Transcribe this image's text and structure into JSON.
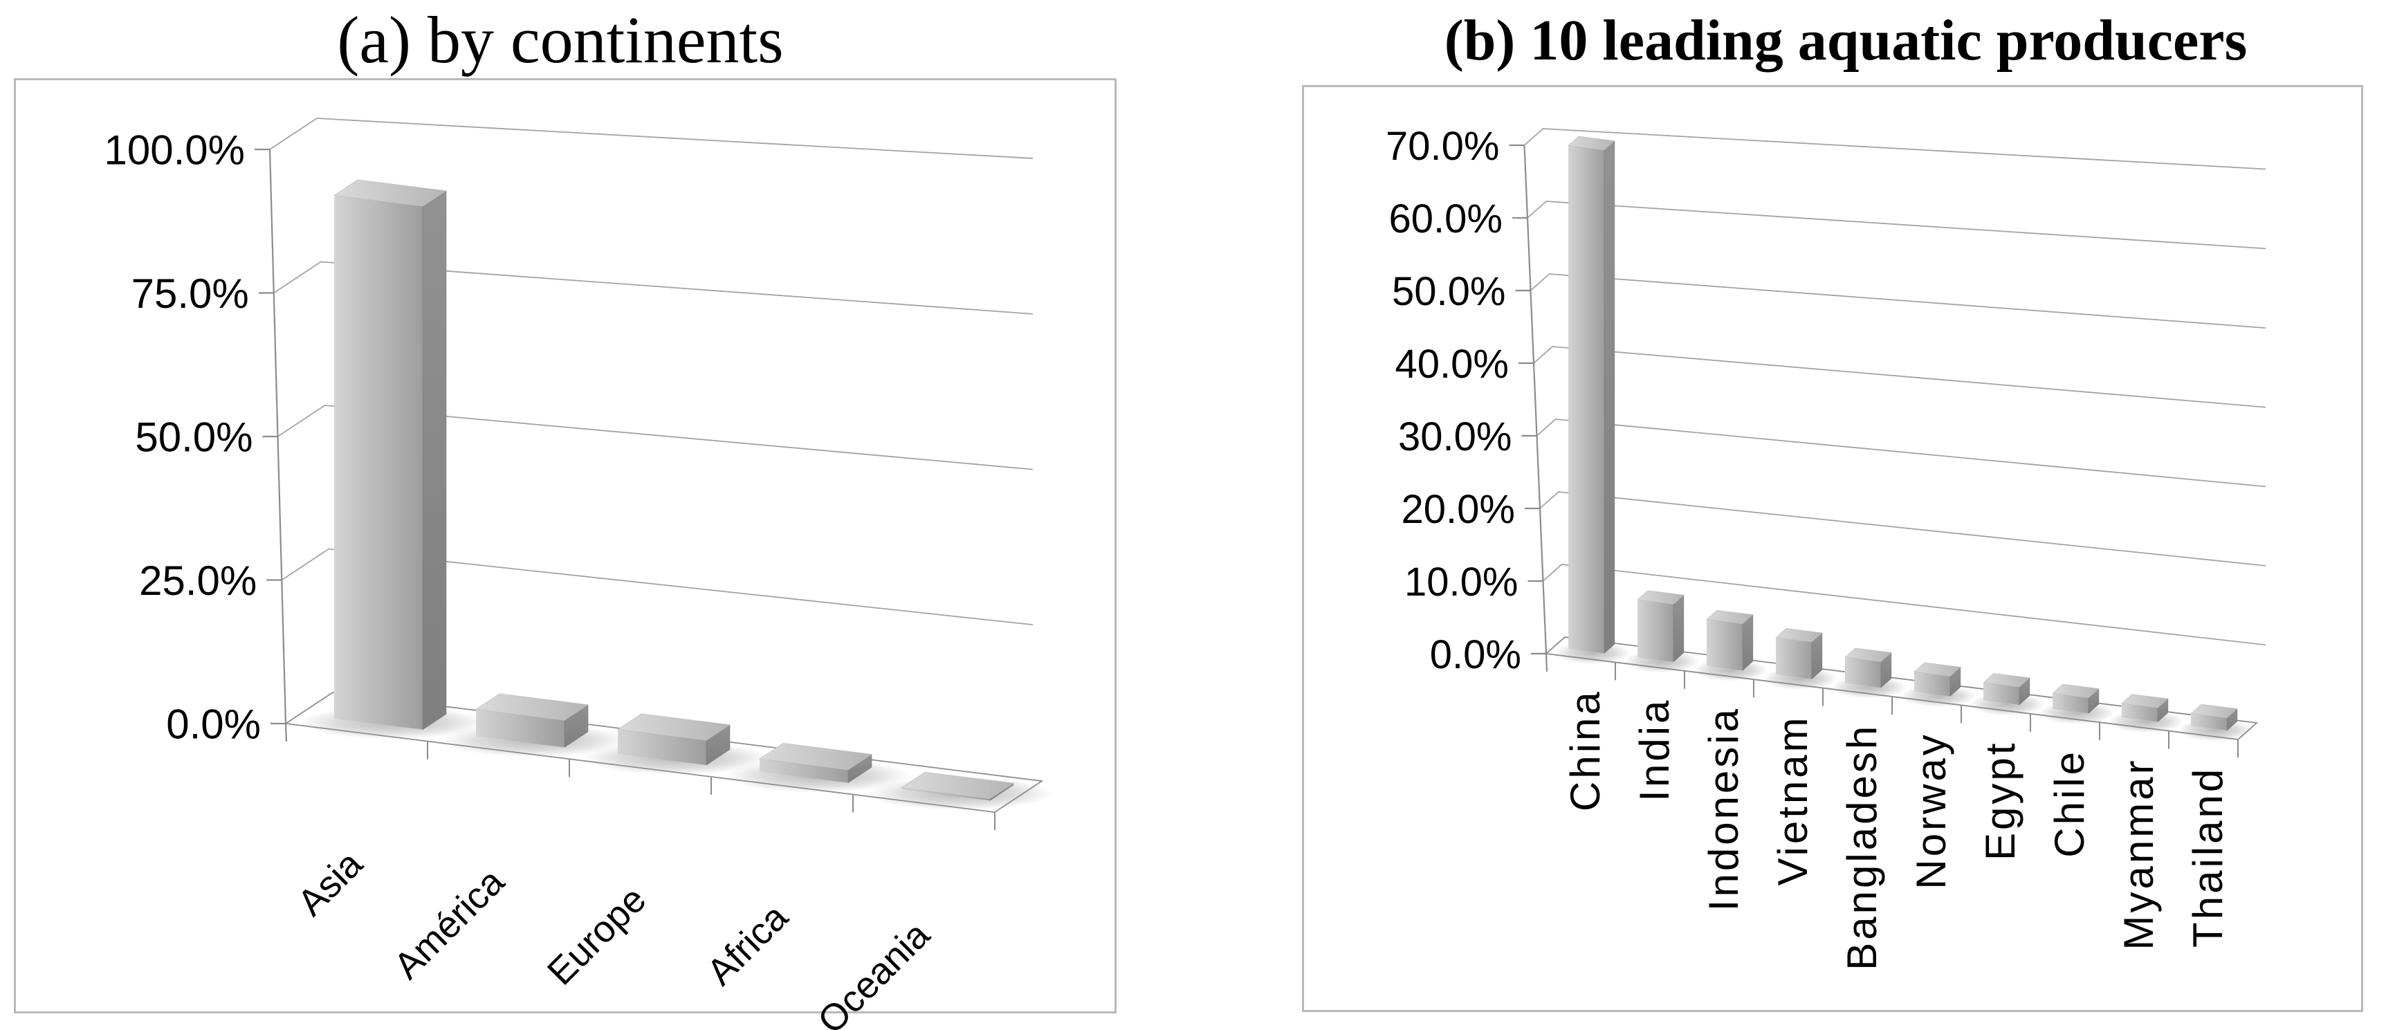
{
  "colors": {
    "bar_front_light": "#d4d4d4",
    "bar_front_dark": "#9d9d9d",
    "bar_side_light": "#929292",
    "bar_side_dark": "#7f7f7f",
    "bar_top_light": "#dadada",
    "bar_top_dark": "#b5b5b5",
    "gridline": "#a3a3a3",
    "axis": "#8c8c8c",
    "panel_border": "#b9b9b9",
    "shadow": "#8a8a8a",
    "text": "#000000"
  },
  "figures": [
    {
      "id": "continents",
      "title": "(a) by continents",
      "chart_data": {
        "type": "bar",
        "projection": "3d",
        "categories": [
          "Asia",
          "América",
          "Europe",
          "Africa",
          "Oceania"
        ],
        "values": [
          89.0,
          4.6,
          4.2,
          2.2,
          0.3
        ],
        "unit": "%",
        "ylim": [
          0,
          100
        ],
        "ytick_step": 25,
        "yticks": [
          "0.0%",
          "25.0%",
          "50.0%",
          "75.0%",
          "100.0%"
        ],
        "grid": true,
        "legend": false,
        "xlabel": "",
        "ylabel": ""
      }
    },
    {
      "id": "producers",
      "title": "(b) 10 leading aquatic producers",
      "chart_data": {
        "type": "bar",
        "projection": "3d",
        "categories": [
          "China",
          "India",
          "Indonesia",
          "Vietnam",
          "Bangladesh",
          "Norway",
          "Egypt",
          "Chile",
          "Myanmar",
          "Thailand"
        ],
        "values": [
          68.0,
          7.8,
          6.3,
          5.0,
          3.5,
          2.7,
          2.4,
          2.1,
          1.9,
          1.7
        ],
        "unit": "%",
        "ylim": [
          0,
          70
        ],
        "ytick_step": 10,
        "yticks": [
          "0.0%",
          "10.0%",
          "20.0%",
          "30.0%",
          "40.0%",
          "50.0%",
          "60.0%",
          "70.0%"
        ],
        "grid": true,
        "legend": false,
        "xlabel": "",
        "ylabel": ""
      }
    }
  ]
}
